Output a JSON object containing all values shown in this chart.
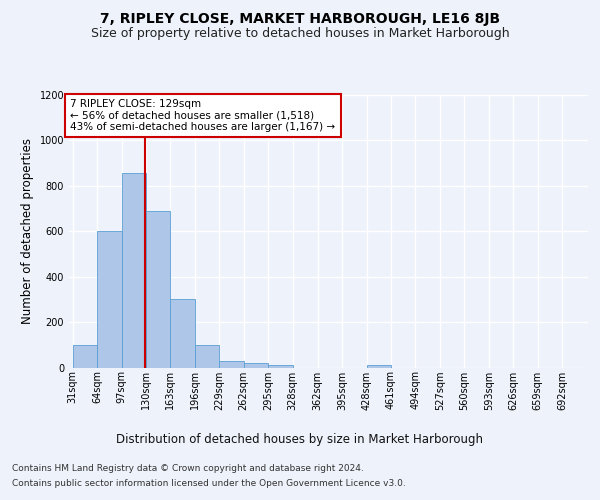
{
  "title": "7, RIPLEY CLOSE, MARKET HARBOROUGH, LE16 8JB",
  "subtitle": "Size of property relative to detached houses in Market Harborough",
  "xlabel": "Distribution of detached houses by size in Market Harborough",
  "ylabel": "Number of detached properties",
  "footer_line1": "Contains HM Land Registry data © Crown copyright and database right 2024.",
  "footer_line2": "Contains public sector information licensed under the Open Government Licence v3.0.",
  "bar_edges": [
    31,
    64,
    97,
    130,
    163,
    196,
    229,
    262,
    295,
    328,
    362,
    395,
    428,
    461,
    494,
    527,
    560,
    593,
    626,
    659,
    692
  ],
  "bar_heights": [
    100,
    600,
    855,
    690,
    300,
    100,
    30,
    20,
    10,
    0,
    0,
    0,
    10,
    0,
    0,
    0,
    0,
    0,
    0,
    0
  ],
  "bar_color": "#aec6e8",
  "bar_edge_color": "#5a9fd4",
  "property_size": 129,
  "vline_color": "#cc0000",
  "annotation_text": "7 RIPLEY CLOSE: 129sqm\n← 56% of detached houses are smaller (1,518)\n43% of semi-detached houses are larger (1,167) →",
  "annotation_box_color": "#ffffff",
  "annotation_box_edge": "#cc0000",
  "ylim": [
    0,
    1200
  ],
  "yticks": [
    0,
    200,
    400,
    600,
    800,
    1000,
    1200
  ],
  "background_color": "#eef2fa",
  "grid_color": "#ffffff",
  "title_fontsize": 10,
  "subtitle_fontsize": 9,
  "axis_label_fontsize": 8.5,
  "tick_fontsize": 7,
  "footer_fontsize": 6.5,
  "annot_fontsize": 7.5
}
